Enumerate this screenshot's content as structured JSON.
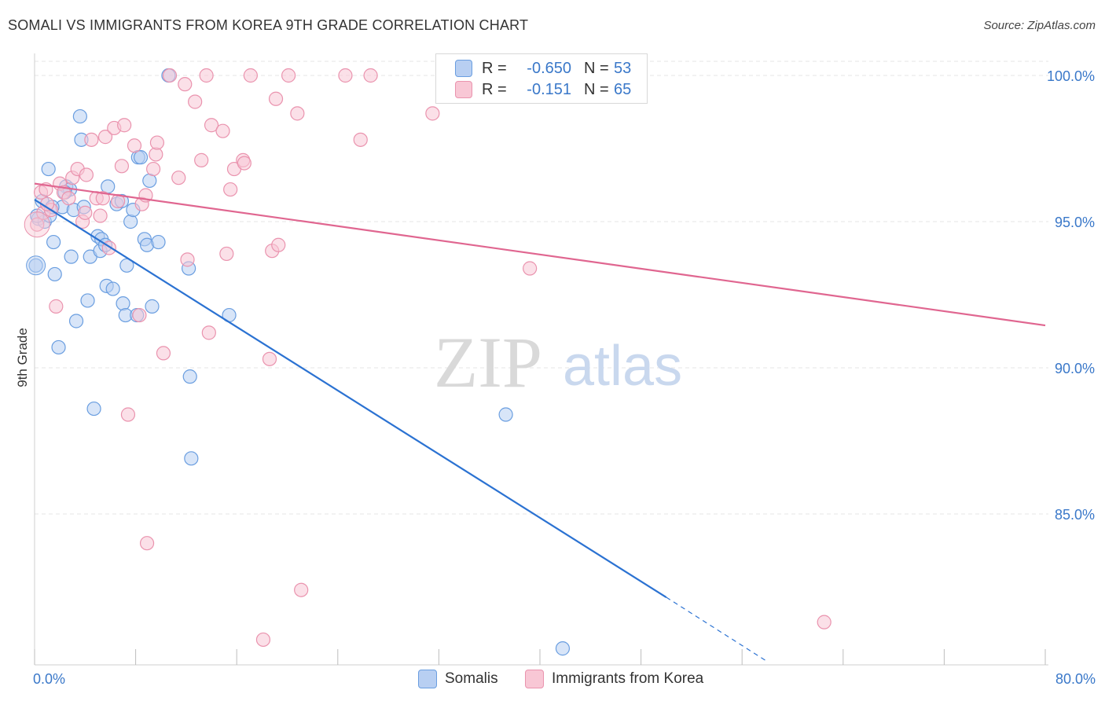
{
  "title": "SOMALI VS IMMIGRANTS FROM KOREA 9TH GRADE CORRELATION CHART",
  "source": "Source: ZipAtlas.com",
  "watermark": {
    "zip": "ZIP",
    "atlas": "atlas"
  },
  "colors": {
    "blue_fill": "#b8cff2",
    "blue_stroke": "#6a9ee0",
    "blue_line": "#2b72d2",
    "pink_fill": "#f8c7d5",
    "pink_stroke": "#ea93ae",
    "pink_line": "#e06690",
    "tick_text": "#3a78c9",
    "grid": "#e6e6e6"
  },
  "legend": {
    "rows": [
      {
        "r_label": "R =",
        "r_value": "-0.650",
        "n_label": "N =",
        "n_value": "53",
        "color": "#b8cff2",
        "stroke": "#6a9ee0"
      },
      {
        "r_label": "R =",
        "r_value": "-0.151",
        "n_label": "N =",
        "n_value": "65",
        "color": "#f8c7d5",
        "stroke": "#ea93ae"
      }
    ]
  },
  "bottom_legend": [
    {
      "label": "Somalis",
      "color": "#b8cff2",
      "stroke": "#6a9ee0"
    },
    {
      "label": "Immigrants from Korea",
      "color": "#f8c7d5",
      "stroke": "#ea93ae"
    }
  ],
  "chart_data": {
    "type": "scatter",
    "title": "SOMALI VS IMMIGRANTS FROM KOREA 9TH GRADE CORRELATION CHART",
    "xlabel": "",
    "ylabel": "9th Grade",
    "xlim": [
      0,
      80
    ],
    "ylim": [
      80.2,
      100.6
    ],
    "x_tick_labels": [
      {
        "value": 0,
        "label": "0.0%"
      },
      {
        "value": 80,
        "label": "80.0%"
      }
    ],
    "x_minor_ticks": [
      0,
      8,
      16,
      24,
      32,
      40,
      48,
      56,
      64,
      72,
      80
    ],
    "y_ticks": [
      {
        "value": 100,
        "label": "100.0%"
      },
      {
        "value": 95,
        "label": "95.0%"
      },
      {
        "value": 90,
        "label": "90.0%"
      },
      {
        "value": 85,
        "label": "85.0%"
      }
    ],
    "series": [
      {
        "name": "Somalis",
        "points": [
          [
            0.1,
            93.5
          ],
          [
            0.3,
            95.1
          ],
          [
            0.6,
            95.7
          ],
          [
            0.8,
            95.0
          ],
          [
            1.1,
            96.8
          ],
          [
            1.2,
            95.2
          ],
          [
            1.5,
            94.3
          ],
          [
            1.6,
            93.2
          ],
          [
            1.9,
            90.7
          ],
          [
            2.2,
            95.5
          ],
          [
            2.5,
            96.2
          ],
          [
            2.8,
            96.1
          ],
          [
            2.9,
            93.8
          ],
          [
            3.1,
            95.4
          ],
          [
            3.3,
            91.6
          ],
          [
            3.6,
            98.6
          ],
          [
            3.7,
            97.8
          ],
          [
            3.9,
            95.5
          ],
          [
            4.2,
            92.3
          ],
          [
            4.4,
            93.8
          ],
          [
            4.7,
            88.6
          ],
          [
            5.0,
            94.5
          ],
          [
            5.2,
            94.0
          ],
          [
            5.3,
            94.4
          ],
          [
            5.6,
            94.2
          ],
          [
            5.7,
            92.8
          ],
          [
            5.8,
            96.2
          ],
          [
            6.2,
            92.7
          ],
          [
            6.5,
            95.6
          ],
          [
            7.0,
            92.2
          ],
          [
            7.2,
            91.8
          ],
          [
            7.3,
            93.5
          ],
          [
            7.6,
            95.0
          ],
          [
            7.8,
            95.4
          ],
          [
            8.1,
            91.8
          ],
          [
            8.2,
            97.2
          ],
          [
            8.4,
            97.2
          ],
          [
            8.7,
            94.4
          ],
          [
            8.9,
            94.2
          ],
          [
            9.1,
            96.4
          ],
          [
            9.3,
            92.1
          ],
          [
            9.8,
            94.3
          ],
          [
            10.6,
            100.0
          ],
          [
            12.2,
            93.4
          ],
          [
            12.3,
            89.7
          ],
          [
            12.4,
            86.9
          ],
          [
            15.4,
            91.8
          ],
          [
            37.3,
            88.4
          ],
          [
            41.8,
            80.4
          ],
          [
            0.2,
            95.2
          ],
          [
            1.4,
            95.5
          ],
          [
            2.4,
            96.0
          ],
          [
            6.9,
            95.7
          ]
        ]
      },
      {
        "name": "Immigrants from Korea",
        "points": [
          [
            0.2,
            94.9
          ],
          [
            0.7,
            95.3
          ],
          [
            1.3,
            95.4
          ],
          [
            1.7,
            92.1
          ],
          [
            2.0,
            96.3
          ],
          [
            2.3,
            96.0
          ],
          [
            2.7,
            95.8
          ],
          [
            3.0,
            96.5
          ],
          [
            3.4,
            96.8
          ],
          [
            3.8,
            95.0
          ],
          [
            4.1,
            96.6
          ],
          [
            4.5,
            97.8
          ],
          [
            4.9,
            95.8
          ],
          [
            5.2,
            95.2
          ],
          [
            5.6,
            97.9
          ],
          [
            5.9,
            94.1
          ],
          [
            6.3,
            98.2
          ],
          [
            6.6,
            95.7
          ],
          [
            6.9,
            96.9
          ],
          [
            7.1,
            98.3
          ],
          [
            7.4,
            88.4
          ],
          [
            7.9,
            97.6
          ],
          [
            8.3,
            91.8
          ],
          [
            8.5,
            95.6
          ],
          [
            8.8,
            95.9
          ],
          [
            8.9,
            84.0
          ],
          [
            9.4,
            96.8
          ],
          [
            9.6,
            97.3
          ],
          [
            9.7,
            97.7
          ],
          [
            10.2,
            90.5
          ],
          [
            10.7,
            100.0
          ],
          [
            11.4,
            96.5
          ],
          [
            11.9,
            99.7
          ],
          [
            12.1,
            93.7
          ],
          [
            12.7,
            99.1
          ],
          [
            13.2,
            97.1
          ],
          [
            13.6,
            100.0
          ],
          [
            13.8,
            91.2
          ],
          [
            14.0,
            98.3
          ],
          [
            14.9,
            98.1
          ],
          [
            15.2,
            93.9
          ],
          [
            15.5,
            96.1
          ],
          [
            15.8,
            96.8
          ],
          [
            16.5,
            97.1
          ],
          [
            16.6,
            97.0
          ],
          [
            17.1,
            100.0
          ],
          [
            18.1,
            80.7
          ],
          [
            18.6,
            90.3
          ],
          [
            18.8,
            94.0
          ],
          [
            19.1,
            99.2
          ],
          [
            19.3,
            94.2
          ],
          [
            20.1,
            100.0
          ],
          [
            20.8,
            98.7
          ],
          [
            21.1,
            82.4
          ],
          [
            24.6,
            100.0
          ],
          [
            25.8,
            97.8
          ],
          [
            26.6,
            100.0
          ],
          [
            31.5,
            98.7
          ],
          [
            39.2,
            93.4
          ],
          [
            62.5,
            81.3
          ],
          [
            0.5,
            96.0
          ],
          [
            1.0,
            95.6
          ],
          [
            4.0,
            95.3
          ],
          [
            5.4,
            95.8
          ],
          [
            0.9,
            96.1
          ]
        ]
      }
    ],
    "trend_lines": [
      {
        "series": "Somalis",
        "x_start": 0,
        "y_start": 95.75,
        "x_solid_end": 50,
        "y_solid_end": 82.15,
        "x_dashed_end": 58,
        "y_dashed_end": 79.95
      },
      {
        "series": "Immigrants from Korea",
        "x_start": 0,
        "y_start": 96.3,
        "x_end": 80,
        "y_end": 91.45
      }
    ]
  }
}
